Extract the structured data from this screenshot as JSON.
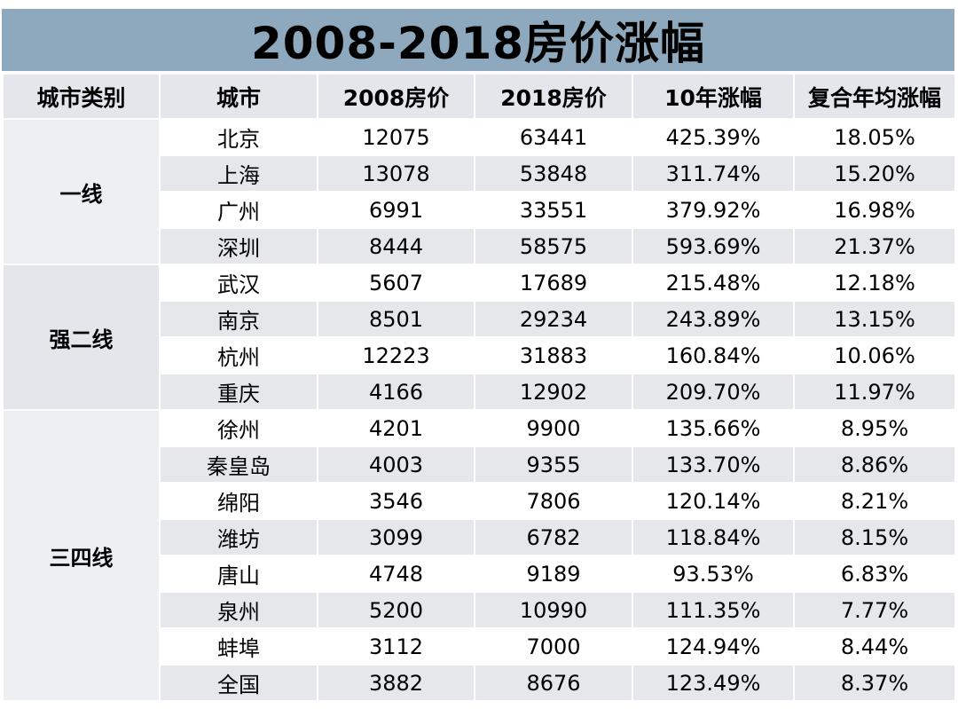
{
  "title": "2008-2018房价涨幅",
  "headers": [
    "城市类别",
    "城市",
    "2008房价",
    "2018房价",
    "10年涨幅",
    "复合年均涨幅"
  ],
  "groups": [
    {
      "category": "一线",
      "rows": [
        {
          "city": "北京",
          "p2008": "12075",
          "p2018": "63441",
          "growth10": "425.39%",
          "cagr": "18.05%"
        },
        {
          "city": "上海",
          "p2008": "13078",
          "p2018": "53848",
          "growth10": "311.74%",
          "cagr": "15.20%"
        },
        {
          "city": "广州",
          "p2008": "6991",
          "p2018": "33551",
          "growth10": "379.92%",
          "cagr": "16.98%"
        },
        {
          "city": "深圳",
          "p2008": "8444",
          "p2018": "58575",
          "growth10": "593.69%",
          "cagr": "21.37%"
        }
      ]
    },
    {
      "category": "强二线",
      "rows": [
        {
          "city": "武汉",
          "p2008": "5607",
          "p2018": "17689",
          "growth10": "215.48%",
          "cagr": "12.18%"
        },
        {
          "city": "南京",
          "p2008": "8501",
          "p2018": "29234",
          "growth10": "243.89%",
          "cagr": "13.15%"
        },
        {
          "city": "杭州",
          "p2008": "12223",
          "p2018": "31883",
          "growth10": "160.84%",
          "cagr": "10.06%"
        },
        {
          "city": "重庆",
          "p2008": "4166",
          "p2018": "12902",
          "growth10": "209.70%",
          "cagr": "11.97%"
        }
      ]
    },
    {
      "category": "三四线",
      "rows": [
        {
          "city": "徐州",
          "p2008": "4201",
          "p2018": "9900",
          "growth10": "135.66%",
          "cagr": "8.95%"
        },
        {
          "city": "秦皇岛",
          "p2008": "4003",
          "p2018": "9355",
          "growth10": "133.70%",
          "cagr": "8.86%"
        },
        {
          "city": "绵阳",
          "p2008": "3546",
          "p2018": "7806",
          "growth10": "120.14%",
          "cagr": "8.21%"
        },
        {
          "city": "潍坊",
          "p2008": "3099",
          "p2018": "6782",
          "growth10": "118.84%",
          "cagr": "8.15%"
        },
        {
          "city": "唐山",
          "p2008": "4748",
          "p2018": "9189",
          "growth10": "93.53%",
          "cagr": "6.83%"
        },
        {
          "city": "泉州",
          "p2008": "5200",
          "p2018": "10990",
          "growth10": "111.35%",
          "cagr": "7.77%"
        },
        {
          "city": "蚌埠",
          "p2008": "3112",
          "p2018": "7000",
          "growth10": "124.94%",
          "cagr": "8.44%"
        },
        {
          "city": "全国",
          "p2008": "3882",
          "p2018": "8676",
          "growth10": "123.49%",
          "cagr": "8.37%"
        }
      ]
    }
  ],
  "chart_data": {
    "type": "table",
    "title": "2008-2018房价涨幅",
    "columns": [
      "城市类别",
      "城市",
      "2008房价",
      "2018房价",
      "10年涨幅",
      "复合年均涨幅"
    ],
    "rows": [
      [
        "一线",
        "北京",
        12075,
        63441,
        "425.39%",
        "18.05%"
      ],
      [
        "一线",
        "上海",
        13078,
        53848,
        "311.74%",
        "15.20%"
      ],
      [
        "一线",
        "广州",
        6991,
        33551,
        "379.92%",
        "16.98%"
      ],
      [
        "一线",
        "深圳",
        8444,
        58575,
        "593.69%",
        "21.37%"
      ],
      [
        "强二线",
        "武汉",
        5607,
        17689,
        "215.48%",
        "12.18%"
      ],
      [
        "强二线",
        "南京",
        8501,
        29234,
        "243.89%",
        "13.15%"
      ],
      [
        "强二线",
        "杭州",
        12223,
        31883,
        "160.84%",
        "10.06%"
      ],
      [
        "强二线",
        "重庆",
        4166,
        12902,
        "209.70%",
        "11.97%"
      ],
      [
        "三四线",
        "徐州",
        4201,
        9900,
        "135.66%",
        "8.95%"
      ],
      [
        "三四线",
        "秦皇岛",
        4003,
        9355,
        "133.70%",
        "8.86%"
      ],
      [
        "三四线",
        "绵阳",
        3546,
        7806,
        "120.14%",
        "8.21%"
      ],
      [
        "三四线",
        "潍坊",
        3099,
        6782,
        "118.84%",
        "8.15%"
      ],
      [
        "三四线",
        "唐山",
        4748,
        9189,
        "93.53%",
        "6.83%"
      ],
      [
        "三四线",
        "泉州",
        5200,
        10990,
        "111.35%",
        "7.77%"
      ],
      [
        "三四线",
        "蚌埠",
        3112,
        7000,
        "124.94%",
        "8.44%"
      ],
      [
        "三四线",
        "全国",
        3882,
        8676,
        "123.49%",
        "8.37%"
      ]
    ]
  },
  "colors": {
    "title_bg": "#8ea9bd",
    "header_bg": "#e3e6ea",
    "row_shade": "#e5e7ea",
    "row_plain": "#ffffff"
  }
}
